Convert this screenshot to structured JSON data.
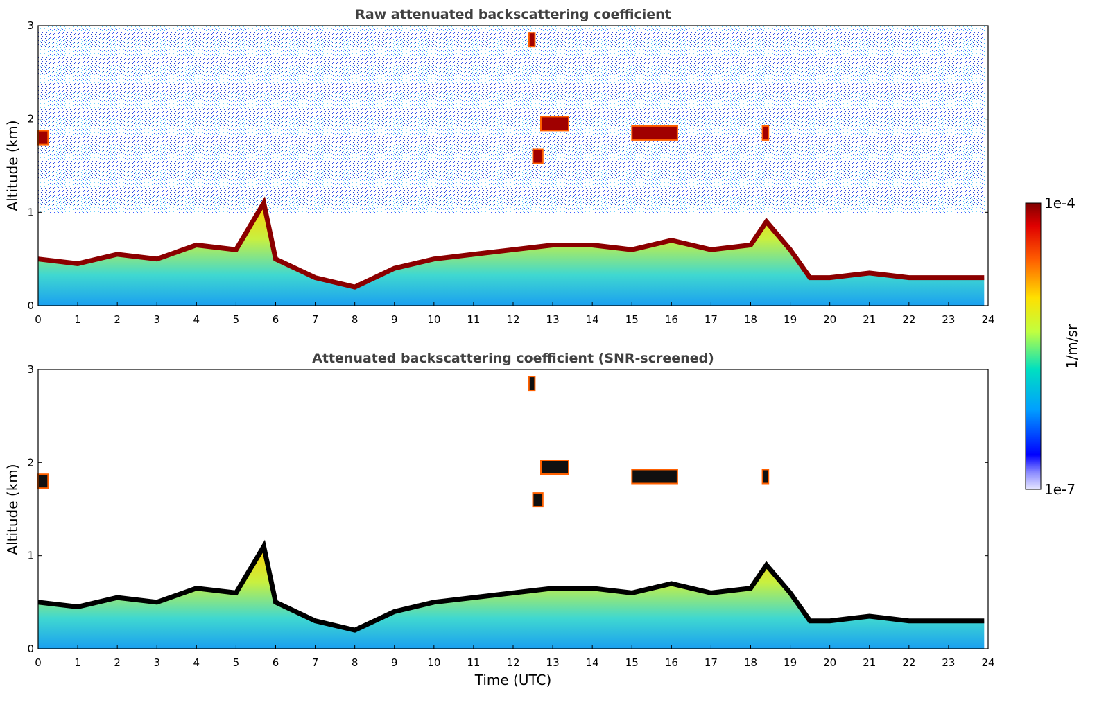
{
  "chart_data": [
    {
      "type": "heatmap",
      "title": "Raw attenuated backscattering coefficient",
      "xlabel": "",
      "ylabel": "Altitude (km)",
      "xlim": [
        0,
        24
      ],
      "ylim": [
        0,
        3
      ],
      "xticks": [
        "0",
        "1",
        "2",
        "3",
        "4",
        "5",
        "6",
        "7",
        "8",
        "9",
        "10",
        "11",
        "12",
        "13",
        "14",
        "15",
        "16",
        "17",
        "18",
        "19",
        "20",
        "21",
        "22",
        "23",
        "24"
      ],
      "yticks": [
        "0",
        "1",
        "2",
        "3"
      ],
      "boundary_layer_top_km": {
        "time_utc": [
          0,
          1,
          2,
          3,
          4,
          5,
          5.7,
          6,
          7,
          8,
          9,
          10,
          11,
          12,
          13,
          14,
          15,
          16,
          17,
          18,
          18.4,
          19,
          19.5,
          20,
          21,
          22,
          23,
          23.9
        ],
        "altitude_km": [
          0.5,
          0.45,
          0.55,
          0.5,
          0.65,
          0.6,
          1.1,
          0.5,
          0.3,
          0.2,
          0.4,
          0.5,
          0.55,
          0.6,
          0.65,
          0.65,
          0.6,
          0.7,
          0.6,
          0.65,
          0.9,
          0.6,
          0.3,
          0.3,
          0.35,
          0.3,
          0.3,
          0.3
        ]
      },
      "cloud_layers": [
        {
          "t0": 0.0,
          "t1": 0.25,
          "alt_km": 1.8
        },
        {
          "t0": 12.4,
          "t1": 12.55,
          "alt_km": 2.85
        },
        {
          "t0": 12.5,
          "t1": 12.75,
          "alt_km": 1.6
        },
        {
          "t0": 12.7,
          "t1": 13.4,
          "alt_km": 1.95
        },
        {
          "t0": 15.0,
          "t1": 16.15,
          "alt_km": 1.85
        },
        {
          "t0": 18.3,
          "t1": 18.45,
          "alt_km": 1.85
        }
      ]
    },
    {
      "type": "heatmap",
      "title": "Attenuated backscattering coefficient (SNR-screened)",
      "xlabel": "Time (UTC)",
      "ylabel": "Altitude (km)",
      "xlim": [
        0,
        24
      ],
      "ylim": [
        0,
        3
      ],
      "xticks": [
        "0",
        "1",
        "2",
        "3",
        "4",
        "5",
        "6",
        "7",
        "8",
        "9",
        "10",
        "11",
        "12",
        "13",
        "14",
        "15",
        "16",
        "17",
        "18",
        "19",
        "20",
        "21",
        "22",
        "23",
        "24"
      ],
      "yticks": [
        "0",
        "1",
        "2",
        "3"
      ]
    }
  ],
  "colorbar": {
    "label": "1/m/sr",
    "max_label": "1e-4",
    "min_label": "1e-7",
    "colormap": [
      "#e8e8ff",
      "#0000ff",
      "#00a0ff",
      "#00e0c0",
      "#c0ff40",
      "#ffe000",
      "#ff6000",
      "#e00000",
      "#800000"
    ]
  }
}
